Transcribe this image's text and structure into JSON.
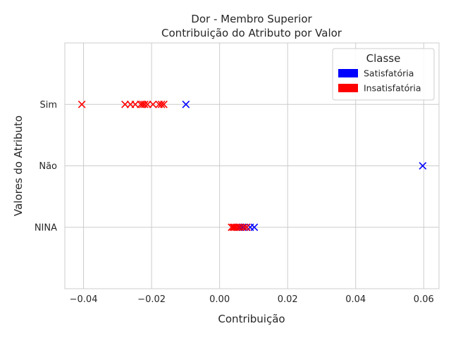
{
  "chart_data": {
    "type": "scatter",
    "title": "Dor - Membro Superior",
    "subtitle": "Contribuição do Atributo por Valor",
    "xlabel": "Contribuição",
    "ylabel": "Valores do Atributo",
    "categories": [
      "NINA",
      "Não",
      "Sim"
    ],
    "xlim": [
      -0.0455,
      0.0645
    ],
    "xticks": [
      -0.04,
      -0.02,
      0.0,
      0.02,
      0.04,
      0.06
    ],
    "xtick_labels": [
      "−0.04",
      "−0.02",
      "0.00",
      "0.02",
      "0.04",
      "0.06"
    ],
    "grid": true,
    "marker": "x",
    "legend": {
      "title": "Classe",
      "position": "top-right",
      "entries": [
        {
          "label": "Satisfatória",
          "color": "#0000ff"
        },
        {
          "label": "Insatisfatória",
          "color": "#ff0000"
        }
      ]
    },
    "series": [
      {
        "name": "Satisfatória",
        "color": "#0000ff",
        "points": [
          {
            "x": -0.0099,
            "y": "Sim"
          },
          {
            "x": 0.0597,
            "y": "Não"
          },
          {
            "x": 0.0058,
            "y": "NINA"
          },
          {
            "x": 0.0068,
            "y": "NINA"
          },
          {
            "x": 0.0079,
            "y": "NINA"
          },
          {
            "x": 0.009,
            "y": "NINA"
          },
          {
            "x": 0.0102,
            "y": "NINA"
          }
        ]
      },
      {
        "name": "Insatisfatória",
        "color": "#ff0000",
        "points": [
          {
            "x": -0.0405,
            "y": "Sim"
          },
          {
            "x": -0.0278,
            "y": "Sim"
          },
          {
            "x": -0.0262,
            "y": "Sim"
          },
          {
            "x": -0.0248,
            "y": "Sim"
          },
          {
            "x": -0.0232,
            "y": "Sim"
          },
          {
            "x": -0.0226,
            "y": "Sim"
          },
          {
            "x": -0.022,
            "y": "Sim"
          },
          {
            "x": -0.0212,
            "y": "Sim"
          },
          {
            "x": -0.0196,
            "y": "Sim"
          },
          {
            "x": -0.0178,
            "y": "Sim"
          },
          {
            "x": -0.0171,
            "y": "Sim"
          },
          {
            "x": -0.0164,
            "y": "Sim"
          },
          {
            "x": 0.0035,
            "y": "NINA"
          },
          {
            "x": 0.004,
            "y": "NINA"
          },
          {
            "x": 0.0044,
            "y": "NINA"
          },
          {
            "x": 0.0049,
            "y": "NINA"
          },
          {
            "x": 0.0055,
            "y": "NINA"
          },
          {
            "x": 0.0062,
            "y": "NINA"
          },
          {
            "x": 0.0072,
            "y": "NINA"
          },
          {
            "x": 0.008,
            "y": "NINA"
          }
        ]
      }
    ]
  }
}
